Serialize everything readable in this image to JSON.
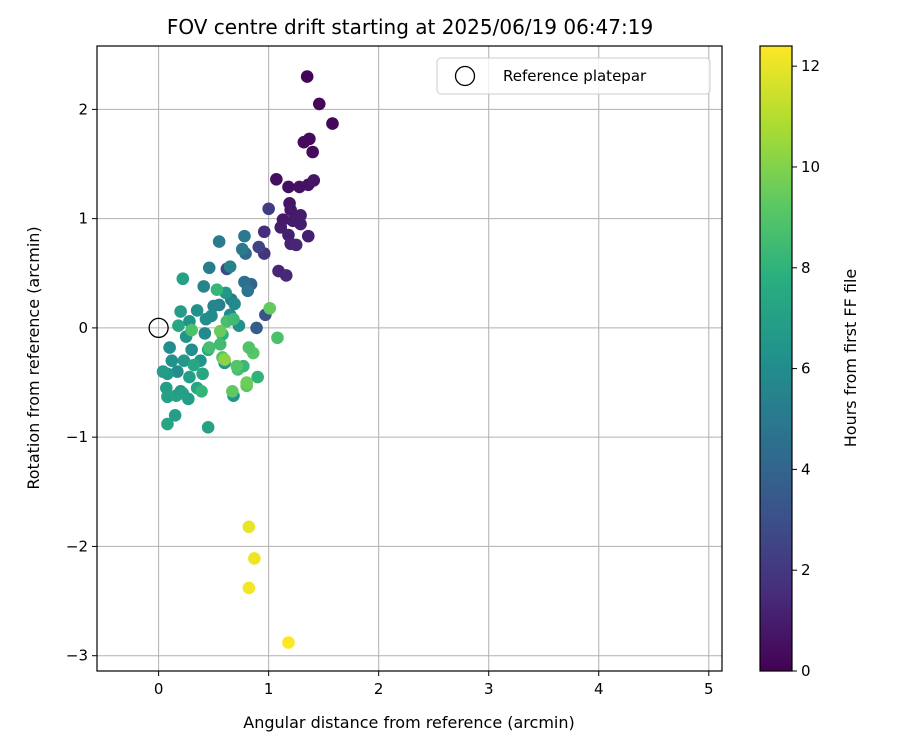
{
  "chart_data": {
    "type": "scatter",
    "title": "FOV centre drift starting at 2025/06/19 06:47:19",
    "xlabel": "Angular distance from reference (arcmin)",
    "ylabel": "Rotation from reference (arcmin)",
    "xlim": [
      -0.56,
      5.12
    ],
    "ylim": [
      -3.14,
      2.58
    ],
    "xticks": [
      0,
      1,
      2,
      3,
      4,
      5
    ],
    "yticks": [
      -3,
      -2,
      -1,
      0,
      1,
      2
    ],
    "grid": true,
    "legend": {
      "placement": "top-right",
      "entries": [
        {
          "label": "Reference platepar",
          "marker": "open-circle"
        }
      ]
    },
    "reference_point": {
      "x": 0,
      "y": 0
    },
    "colorbar": {
      "label": "Hours from first FF file",
      "range": [
        0,
        12.4
      ],
      "ticks": [
        0,
        2,
        4,
        6,
        8,
        10,
        12
      ],
      "colormap": "viridis"
    },
    "points": [
      {
        "x": 1.35,
        "y": 2.3,
        "c": 0.1
      },
      {
        "x": 1.46,
        "y": 2.05,
        "c": 0.2
      },
      {
        "x": 1.58,
        "y": 1.87,
        "c": 0.2
      },
      {
        "x": 1.32,
        "y": 1.7,
        "c": 0.3
      },
      {
        "x": 1.37,
        "y": 1.73,
        "c": 0.3
      },
      {
        "x": 1.4,
        "y": 1.61,
        "c": 0.4
      },
      {
        "x": 1.07,
        "y": 1.36,
        "c": 0.5
      },
      {
        "x": 1.18,
        "y": 1.29,
        "c": 0.5
      },
      {
        "x": 1.28,
        "y": 1.29,
        "c": 0.6
      },
      {
        "x": 1.36,
        "y": 1.31,
        "c": 0.6
      },
      {
        "x": 1.41,
        "y": 1.35,
        "c": 0.7
      },
      {
        "x": 1.19,
        "y": 1.14,
        "c": 0.7
      },
      {
        "x": 1.2,
        "y": 1.08,
        "c": 0.8
      },
      {
        "x": 1.13,
        "y": 0.99,
        "c": 0.8
      },
      {
        "x": 1.22,
        "y": 0.98,
        "c": 0.9
      },
      {
        "x": 1.29,
        "y": 1.03,
        "c": 0.9
      },
      {
        "x": 1.29,
        "y": 0.95,
        "c": 1.0
      },
      {
        "x": 1.11,
        "y": 0.92,
        "c": 1.0
      },
      {
        "x": 1.18,
        "y": 0.85,
        "c": 1.1
      },
      {
        "x": 1.36,
        "y": 0.84,
        "c": 1.1
      },
      {
        "x": 1.2,
        "y": 0.77,
        "c": 1.2
      },
      {
        "x": 1.25,
        "y": 0.76,
        "c": 1.3
      },
      {
        "x": 1.09,
        "y": 0.52,
        "c": 1.3
      },
      {
        "x": 1.16,
        "y": 0.48,
        "c": 1.4
      },
      {
        "x": 0.96,
        "y": 0.88,
        "c": 1.6
      },
      {
        "x": 0.96,
        "y": 0.68,
        "c": 1.8
      },
      {
        "x": 1.0,
        "y": 1.09,
        "c": 2.2
      },
      {
        "x": 0.91,
        "y": 0.74,
        "c": 2.5
      },
      {
        "x": 0.62,
        "y": 0.54,
        "c": 2.7
      },
      {
        "x": 0.97,
        "y": 0.12,
        "c": 3.2
      },
      {
        "x": 0.89,
        "y": 0.0,
        "c": 3.6
      },
      {
        "x": 0.84,
        "y": 0.4,
        "c": 3.9
      },
      {
        "x": 0.79,
        "y": 0.68,
        "c": 4.2
      },
      {
        "x": 0.78,
        "y": 0.42,
        "c": 4.5
      },
      {
        "x": 0.81,
        "y": 0.34,
        "c": 4.8
      },
      {
        "x": 0.78,
        "y": 0.84,
        "c": 5.0
      },
      {
        "x": 0.55,
        "y": 0.79,
        "c": 5.1
      },
      {
        "x": 0.76,
        "y": 0.72,
        "c": 5.0
      },
      {
        "x": 0.65,
        "y": 0.56,
        "c": 5.5
      },
      {
        "x": 0.46,
        "y": 0.55,
        "c": 5.2
      },
      {
        "x": 0.41,
        "y": 0.38,
        "c": 5.6
      },
      {
        "x": 0.55,
        "y": 0.21,
        "c": 5.4
      },
      {
        "x": 0.5,
        "y": 0.2,
        "c": 5.7
      },
      {
        "x": 0.66,
        "y": 0.26,
        "c": 5.3
      },
      {
        "x": 0.69,
        "y": 0.22,
        "c": 5.8
      },
      {
        "x": 0.48,
        "y": 0.11,
        "c": 5.9
      },
      {
        "x": 0.43,
        "y": 0.08,
        "c": 6.0
      },
      {
        "x": 0.35,
        "y": 0.16,
        "c": 6.2
      },
      {
        "x": 0.28,
        "y": 0.06,
        "c": 6.3
      },
      {
        "x": 0.25,
        "y": -0.08,
        "c": 6.4
      },
      {
        "x": 0.42,
        "y": -0.05,
        "c": 5.8
      },
      {
        "x": 0.3,
        "y": -0.2,
        "c": 6.1
      },
      {
        "x": 0.23,
        "y": -0.3,
        "c": 6.5
      },
      {
        "x": 0.17,
        "y": -0.4,
        "c": 6.0
      },
      {
        "x": 0.08,
        "y": -0.42,
        "c": 6.6
      },
      {
        "x": 0.04,
        "y": -0.4,
        "c": 6.8
      },
      {
        "x": 0.07,
        "y": -0.55,
        "c": 6.9
      },
      {
        "x": 0.08,
        "y": -0.63,
        "c": 7.0
      },
      {
        "x": 0.16,
        "y": -0.62,
        "c": 7.1
      },
      {
        "x": 0.2,
        "y": -0.58,
        "c": 6.7
      },
      {
        "x": 0.27,
        "y": -0.65,
        "c": 6.8
      },
      {
        "x": 0.35,
        "y": -0.55,
        "c": 7.2
      },
      {
        "x": 0.4,
        "y": -0.42,
        "c": 7.3
      },
      {
        "x": 0.38,
        "y": -0.3,
        "c": 6.4
      },
      {
        "x": 0.28,
        "y": -0.45,
        "c": 6.9
      },
      {
        "x": 0.22,
        "y": -0.6,
        "c": 7.0
      },
      {
        "x": 0.15,
        "y": -0.8,
        "c": 6.9
      },
      {
        "x": 0.08,
        "y": -0.88,
        "c": 7.2
      },
      {
        "x": 0.45,
        "y": -0.91,
        "c": 7.1
      },
      {
        "x": 0.22,
        "y": 0.45,
        "c": 7.0
      },
      {
        "x": 0.2,
        "y": 0.15,
        "c": 6.8
      },
      {
        "x": 0.18,
        "y": 0.02,
        "c": 7.3
      },
      {
        "x": 0.12,
        "y": -0.3,
        "c": 6.2
      },
      {
        "x": 0.1,
        "y": -0.18,
        "c": 6.0
      },
      {
        "x": 0.32,
        "y": -0.34,
        "c": 7.4
      },
      {
        "x": 0.45,
        "y": -0.2,
        "c": 7.6
      },
      {
        "x": 0.58,
        "y": -0.06,
        "c": 7.8
      },
      {
        "x": 0.68,
        "y": -0.62,
        "c": 6.3
      },
      {
        "x": 0.61,
        "y": 0.32,
        "c": 6.6
      },
      {
        "x": 0.65,
        "y": 0.12,
        "c": 5.9
      },
      {
        "x": 0.73,
        "y": 0.02,
        "c": 6.2
      },
      {
        "x": 0.6,
        "y": -0.32,
        "c": 6.5
      },
      {
        "x": 0.53,
        "y": 0.35,
        "c": 8.2
      },
      {
        "x": 0.56,
        "y": -0.15,
        "c": 8.5
      },
      {
        "x": 0.62,
        "y": 0.06,
        "c": 8.7
      },
      {
        "x": 0.68,
        "y": 0.08,
        "c": 8.4
      },
      {
        "x": 0.58,
        "y": -0.27,
        "c": 9.0
      },
      {
        "x": 0.72,
        "y": -0.38,
        "c": 8.6
      },
      {
        "x": 0.77,
        "y": -0.35,
        "c": 8.3
      },
      {
        "x": 0.8,
        "y": -0.53,
        "c": 9.2
      },
      {
        "x": 0.86,
        "y": -0.23,
        "c": 9.1
      },
      {
        "x": 0.82,
        "y": -0.18,
        "c": 8.9
      },
      {
        "x": 0.9,
        "y": -0.45,
        "c": 8.0
      },
      {
        "x": 0.39,
        "y": -0.58,
        "c": 8.1
      },
      {
        "x": 0.3,
        "y": -0.02,
        "c": 8.8
      },
      {
        "x": 0.46,
        "y": -0.18,
        "c": 8.6
      },
      {
        "x": 0.56,
        "y": -0.03,
        "c": 9.5
      },
      {
        "x": 0.67,
        "y": -0.58,
        "c": 9.3
      },
      {
        "x": 0.8,
        "y": -0.5,
        "c": 9.6
      },
      {
        "x": 1.01,
        "y": 0.18,
        "c": 9.4
      },
      {
        "x": 1.08,
        "y": -0.09,
        "c": 8.8
      },
      {
        "x": 0.6,
        "y": -0.29,
        "c": 10.2
      },
      {
        "x": 0.71,
        "y": -0.35,
        "c": 9.0
      },
      {
        "x": 0.82,
        "y": -1.82,
        "c": 12.0
      },
      {
        "x": 0.87,
        "y": -2.11,
        "c": 12.1
      },
      {
        "x": 0.82,
        "y": -2.38,
        "c": 12.2
      },
      {
        "x": 1.18,
        "y": -2.88,
        "c": 12.4
      }
    ]
  }
}
